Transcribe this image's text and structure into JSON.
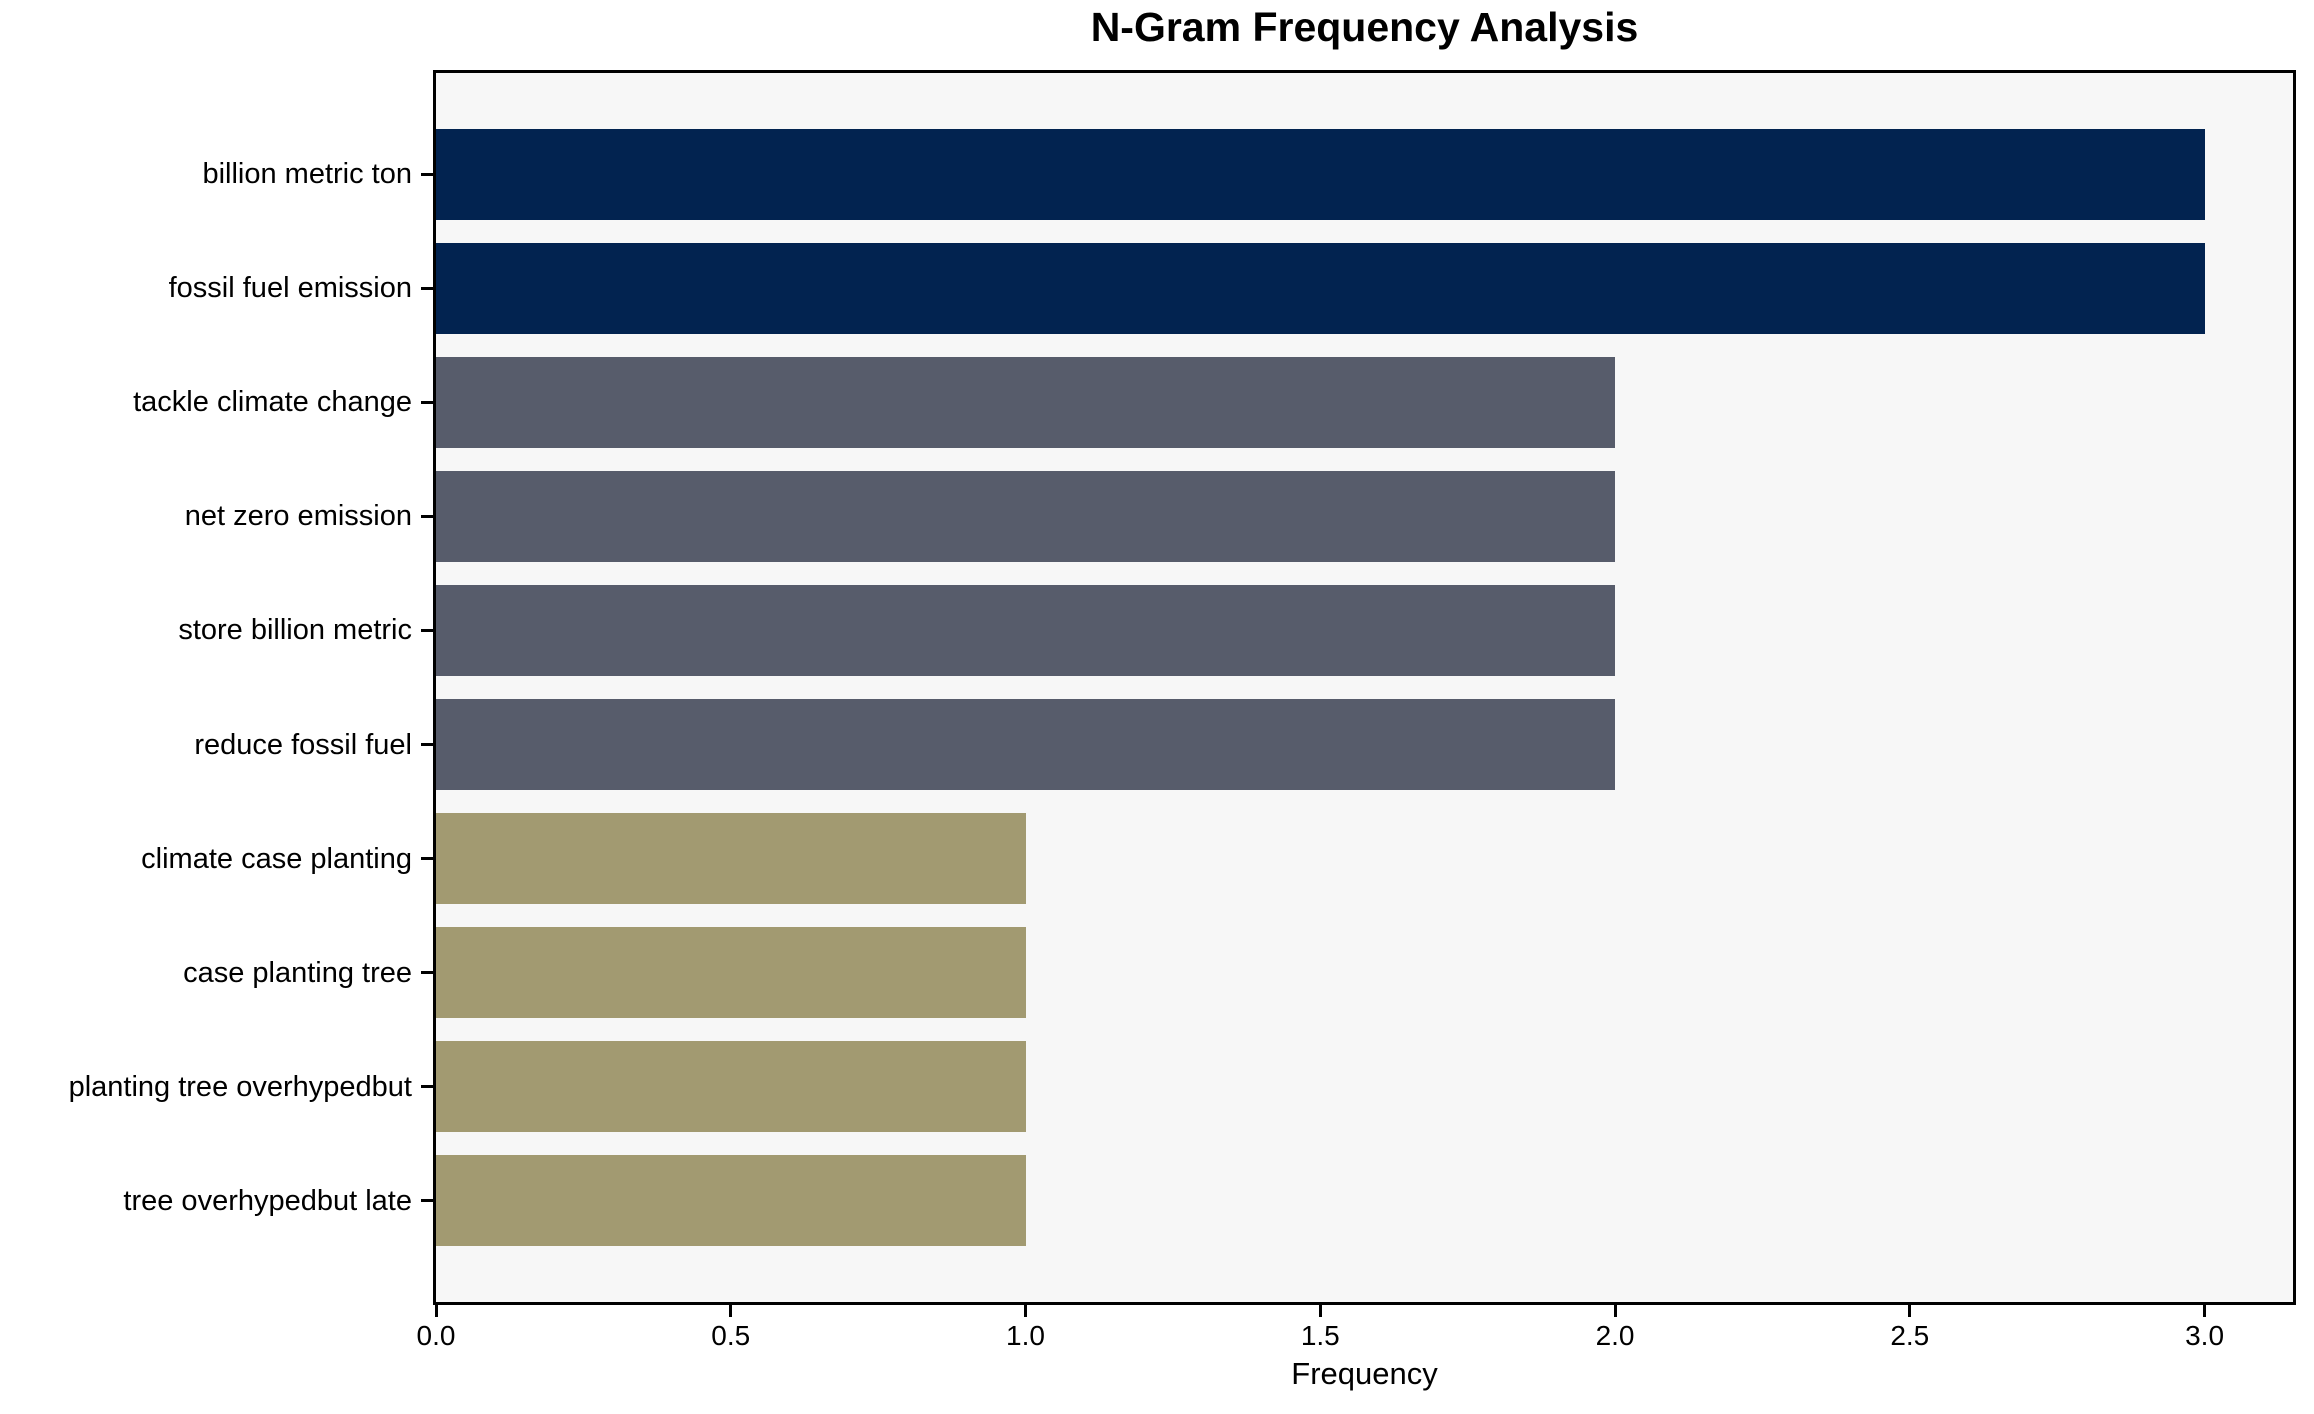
{
  "chart_data": {
    "type": "bar",
    "orientation": "horizontal",
    "title": "N-Gram Frequency Analysis",
    "xlabel": "Frequency",
    "ylabel": "",
    "categories": [
      "billion metric ton",
      "fossil fuel emission",
      "tackle climate change",
      "net zero emission",
      "store billion metric",
      "reduce fossil fuel",
      "climate case planting",
      "case planting tree",
      "planting tree overhypedbut",
      "tree overhypedbut late"
    ],
    "values": [
      3,
      3,
      2,
      2,
      2,
      2,
      1,
      1,
      1,
      1
    ],
    "bar_colors": [
      "#022350",
      "#022350",
      "#575c6b",
      "#575c6b",
      "#575c6b",
      "#575c6b",
      "#a29a71",
      "#a29a71",
      "#a29a71",
      "#a29a71"
    ],
    "xlim": [
      0,
      3.15
    ],
    "xticks": [
      "0.0",
      "0.5",
      "1.0",
      "1.5",
      "2.0",
      "2.5",
      "3.0"
    ],
    "xtick_values": [
      0,
      0.5,
      1,
      1.5,
      2,
      2.5,
      3
    ],
    "grid": false,
    "legend": null,
    "plot_bg": "#f7f7f7",
    "figure_bg": "#ffffff",
    "spine_color": "#000000",
    "bar_height_fraction": 0.8
  }
}
